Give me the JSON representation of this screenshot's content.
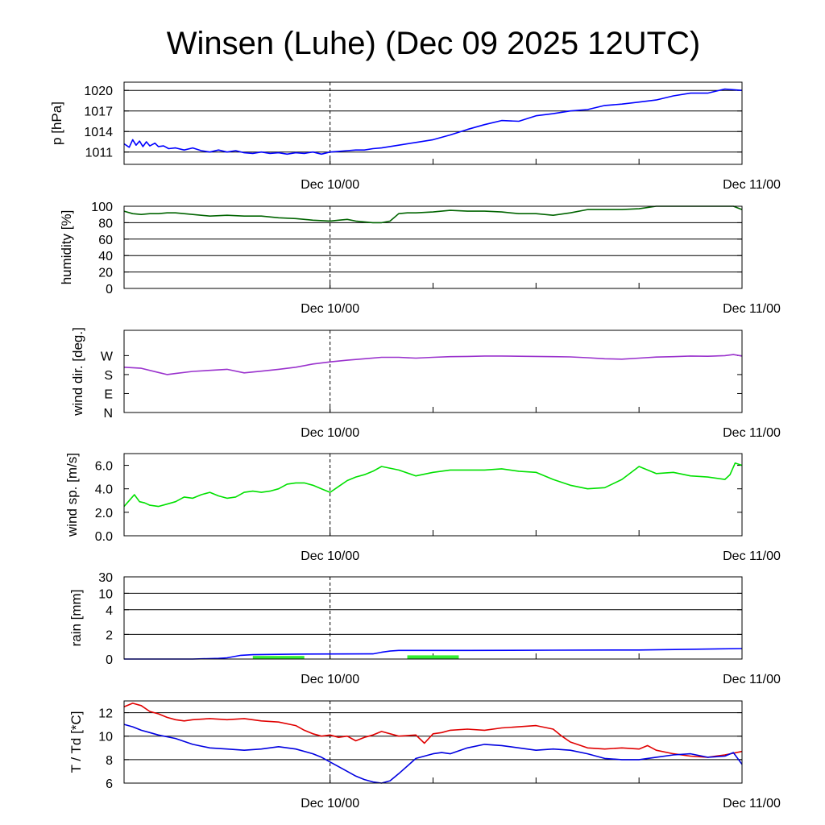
{
  "title": "Winsen (Luhe) (Dec 09 2025 12UTC)",
  "x_labels": [
    "Dec 10/00",
    "Dec 11/00"
  ],
  "chart_data": [
    {
      "type": "line",
      "ylabel": "p [hPa]",
      "ylim": [
        1009.2,
        1021.2
      ],
      "yticks": [
        1011,
        1014,
        1017,
        1020
      ],
      "tick_labels": [
        "1011",
        "1014",
        "1017",
        "1020"
      ],
      "grid": true,
      "series": [
        {
          "color": "#0000ff",
          "x": [
            0,
            0.3,
            0.5,
            0.7,
            0.9,
            1.1,
            1.3,
            1.5,
            1.8,
            2.0,
            2.3,
            2.6,
            3.0,
            3.5,
            4.0,
            4.5,
            5.0,
            5.5,
            6.0,
            6.5,
            7.0,
            7.5,
            8.0,
            8.5,
            9.0,
            9.5,
            10.0,
            10.5,
            11.0,
            11.5,
            12.0,
            12.5,
            13.0,
            13.5,
            14.0,
            14.5,
            15.0,
            16.0,
            17.0,
            18.0,
            19.0,
            20.0,
            21.0,
            22.0,
            23.0,
            24.0,
            25.0,
            26.0,
            27.0,
            28.0,
            29.0,
            30.0,
            31.0,
            32.0,
            33.0,
            34.0,
            35.0,
            36.0
          ],
          "y": [
            1012.2,
            1011.7,
            1012.8,
            1012.0,
            1012.6,
            1011.8,
            1012.5,
            1011.9,
            1012.3,
            1011.8,
            1011.9,
            1011.5,
            1011.6,
            1011.3,
            1011.6,
            1011.2,
            1011.0,
            1011.3,
            1011.0,
            1011.2,
            1010.9,
            1010.8,
            1011.0,
            1010.8,
            1010.9,
            1010.7,
            1010.9,
            1010.8,
            1011.0,
            1010.7,
            1011.0,
            1011.1,
            1011.2,
            1011.3,
            1011.3,
            1011.5,
            1011.6,
            1012.0,
            1012.4,
            1012.8,
            1013.5,
            1014.3,
            1015.0,
            1015.6,
            1015.5,
            1016.3,
            1016.6,
            1017.0,
            1017.2,
            1017.8,
            1018.0,
            1018.3,
            1018.6,
            1019.2,
            1019.6,
            1019.6,
            1020.2,
            1020.0
          ]
        }
      ]
    },
    {
      "type": "line",
      "ylabel": "humidity [%]",
      "ylim": [
        0,
        100
      ],
      "yticks": [
        0,
        20,
        40,
        60,
        80,
        100
      ],
      "tick_labels": [
        "0",
        "20",
        "40",
        "60",
        "80",
        "100"
      ],
      "grid": true,
      "series": [
        {
          "color": "#006400",
          "x": [
            0,
            0.5,
            1.0,
            1.5,
            2.0,
            2.5,
            3.0,
            4.0,
            5.0,
            6.0,
            7.0,
            8.0,
            9.0,
            10.0,
            11.0,
            12.0,
            12.5,
            13.0,
            13.5,
            14.0,
            14.5,
            15.0,
            15.5,
            16.0,
            16.5,
            17.0,
            18.0,
            19.0,
            20.0,
            21.0,
            22.0,
            23.0,
            24.0,
            25.0,
            26.0,
            27.0,
            28.0,
            29.0,
            30.0,
            31.0,
            32.0,
            33.0,
            34.0,
            35.0,
            35.5,
            36.0
          ],
          "y": [
            94,
            91,
            90,
            91,
            91,
            92,
            92,
            90,
            88,
            89,
            88,
            88,
            86,
            85,
            83,
            82,
            83,
            84,
            82,
            81,
            80,
            80,
            82,
            91,
            92,
            92,
            93,
            95,
            94,
            94,
            93,
            91,
            91,
            89,
            92,
            96,
            96,
            96,
            97,
            100,
            100,
            100,
            100,
            100,
            100,
            96
          ]
        }
      ]
    },
    {
      "type": "line",
      "ylabel": "wind dir. [deg.]",
      "ylim": [
        0,
        390
      ],
      "yticks": [
        0,
        90,
        180,
        270
      ],
      "tick_labels": [
        "N",
        "E",
        "S",
        "W"
      ],
      "grid": false,
      "series": [
        {
          "color": "#9a32cd",
          "x": [
            0,
            1.0,
            2.0,
            2.5,
            3.0,
            4.0,
            5.0,
            6.0,
            7.0,
            8.0,
            9.0,
            10.0,
            11.0,
            12.0,
            13.0,
            14.0,
            15.0,
            16.0,
            17.0,
            18.0,
            19.0,
            20.0,
            21.0,
            22.0,
            23.0,
            24.0,
            25.0,
            26.0,
            27.0,
            28.0,
            29.0,
            30.0,
            31.0,
            32.0,
            33.0,
            34.0,
            35.0,
            35.5,
            36.0
          ],
          "y": [
            215,
            210,
            190,
            180,
            185,
            195,
            200,
            205,
            188,
            196,
            205,
            215,
            230,
            240,
            248,
            255,
            262,
            262,
            258,
            262,
            265,
            266,
            268,
            268,
            267,
            266,
            265,
            264,
            260,
            255,
            253,
            258,
            263,
            265,
            268,
            267,
            270,
            275,
            268
          ]
        }
      ]
    },
    {
      "type": "line",
      "ylabel": "wind sp. [m/s]",
      "ylim": [
        0,
        7.0
      ],
      "yticks": [
        0,
        2,
        4,
        6
      ],
      "tick_labels": [
        "0.0",
        "2.0",
        "4.0",
        "6.0"
      ],
      "grid": false,
      "series": [
        {
          "color": "#00e000",
          "x": [
            0,
            0.3,
            0.6,
            0.9,
            1.2,
            1.5,
            2.0,
            2.5,
            3.0,
            3.5,
            4.0,
            4.5,
            5.0,
            5.5,
            6.0,
            6.5,
            7.0,
            7.5,
            8.0,
            8.5,
            9.0,
            9.5,
            10.0,
            10.5,
            11.0,
            11.5,
            12.0,
            12.5,
            13.0,
            13.5,
            14.0,
            14.5,
            15.0,
            16.0,
            17.0,
            18.0,
            19.0,
            20.0,
            21.0,
            22.0,
            23.0,
            24.0,
            25.0,
            26.0,
            27.0,
            28.0,
            29.0,
            30.0,
            31.0,
            32.0,
            33.0,
            34.0,
            35.0,
            35.3,
            35.6,
            36.0
          ],
          "y": [
            2.5,
            3.0,
            3.5,
            2.9,
            2.8,
            2.6,
            2.5,
            2.7,
            2.9,
            3.3,
            3.2,
            3.5,
            3.7,
            3.4,
            3.2,
            3.3,
            3.7,
            3.8,
            3.7,
            3.8,
            4.0,
            4.4,
            4.5,
            4.5,
            4.3,
            4.0,
            3.7,
            4.2,
            4.7,
            5.0,
            5.2,
            5.5,
            5.9,
            5.6,
            5.1,
            5.4,
            5.6,
            5.6,
            5.6,
            5.7,
            5.5,
            5.4,
            4.8,
            4.3,
            4.0,
            4.1,
            4.8,
            5.9,
            5.3,
            5.4,
            5.1,
            5.0,
            4.8,
            5.2,
            6.2,
            6.0
          ]
        }
      ]
    },
    {
      "type": "line",
      "ylabel": "rain [mm]",
      "ylim": [
        0,
        30
      ],
      "yticks": [
        0,
        2,
        4,
        10,
        30
      ],
      "tick_labels": [
        "0",
        "2",
        "4",
        "10",
        "30"
      ],
      "grid": true,
      "series": [
        {
          "color": "#0000ff",
          "x": [
            0,
            4.0,
            5.5,
            6.0,
            6.8,
            7.5,
            10.0,
            14.5,
            15.0,
            15.5,
            16.0,
            20.0,
            25.0,
            30.0,
            36.0
          ],
          "y": [
            0,
            0,
            0.05,
            0.1,
            0.3,
            0.35,
            0.4,
            0.42,
            0.55,
            0.65,
            0.7,
            0.7,
            0.72,
            0.73,
            0.85
          ]
        }
      ],
      "bars": {
        "color": "#33ee33",
        "x_ranges": [
          [
            7.5,
            10.5
          ],
          [
            16.5,
            19.5
          ]
        ],
        "values": [
          0.25,
          0.3
        ]
      }
    },
    {
      "type": "line",
      "ylabel": "T / Td [*C]",
      "ylim": [
        6,
        13
      ],
      "yticks": [
        6,
        8,
        10,
        12
      ],
      "tick_labels": [
        "6",
        "8",
        "10",
        "12"
      ],
      "grid": true,
      "series": [
        {
          "color": "#e00000",
          "x": [
            0,
            0.5,
            1.0,
            1.5,
            2.0,
            2.5,
            3.0,
            3.5,
            4.0,
            5.0,
            6.0,
            7.0,
            8.0,
            9.0,
            10.0,
            10.5,
            11.0,
            11.5,
            12.0,
            12.5,
            13.0,
            13.5,
            14.0,
            14.5,
            15.0,
            16.0,
            17.0,
            17.5,
            18.0,
            18.5,
            19.0,
            20.0,
            21.0,
            22.0,
            23.0,
            24.0,
            25.0,
            25.5,
            26.0,
            27.0,
            28.0,
            29.0,
            30.0,
            30.5,
            31.0,
            32.0,
            33.0,
            34.0,
            35.0,
            36.0
          ],
          "y": [
            12.5,
            12.8,
            12.6,
            12.1,
            11.9,
            11.6,
            11.4,
            11.3,
            11.4,
            11.5,
            11.4,
            11.5,
            11.3,
            11.2,
            10.9,
            10.5,
            10.2,
            10.0,
            10.1,
            9.9,
            10.0,
            9.6,
            9.9,
            10.1,
            10.4,
            10.0,
            10.1,
            9.4,
            10.2,
            10.3,
            10.5,
            10.6,
            10.5,
            10.7,
            10.8,
            10.9,
            10.6,
            10.0,
            9.5,
            9.0,
            8.9,
            9.0,
            8.9,
            9.2,
            8.8,
            8.5,
            8.3,
            8.2,
            8.4,
            8.7
          ]
        },
        {
          "color": "#0000e0",
          "x": [
            0,
            0.5,
            1.0,
            1.5,
            2.0,
            3.0,
            4.0,
            5.0,
            6.0,
            7.0,
            8.0,
            9.0,
            10.0,
            11.0,
            11.5,
            12.0,
            12.5,
            13.0,
            13.5,
            14.0,
            14.5,
            15.0,
            15.5,
            16.0,
            17.0,
            18.0,
            18.5,
            19.0,
            20.0,
            21.0,
            22.0,
            23.0,
            24.0,
            25.0,
            26.0,
            27.0,
            28.0,
            29.0,
            30.0,
            31.0,
            32.0,
            33.0,
            34.0,
            35.0,
            35.5,
            36.0
          ],
          "y": [
            11.0,
            10.8,
            10.5,
            10.3,
            10.1,
            9.8,
            9.3,
            9.0,
            8.9,
            8.8,
            8.9,
            9.1,
            8.9,
            8.5,
            8.2,
            7.8,
            7.4,
            7.0,
            6.6,
            6.3,
            6.1,
            6.0,
            6.2,
            6.8,
            8.1,
            8.5,
            8.6,
            8.5,
            9.0,
            9.3,
            9.2,
            9.0,
            8.8,
            8.9,
            8.8,
            8.5,
            8.1,
            8.0,
            8.0,
            8.2,
            8.4,
            8.5,
            8.2,
            8.3,
            8.6,
            7.6
          ]
        }
      ]
    }
  ]
}
